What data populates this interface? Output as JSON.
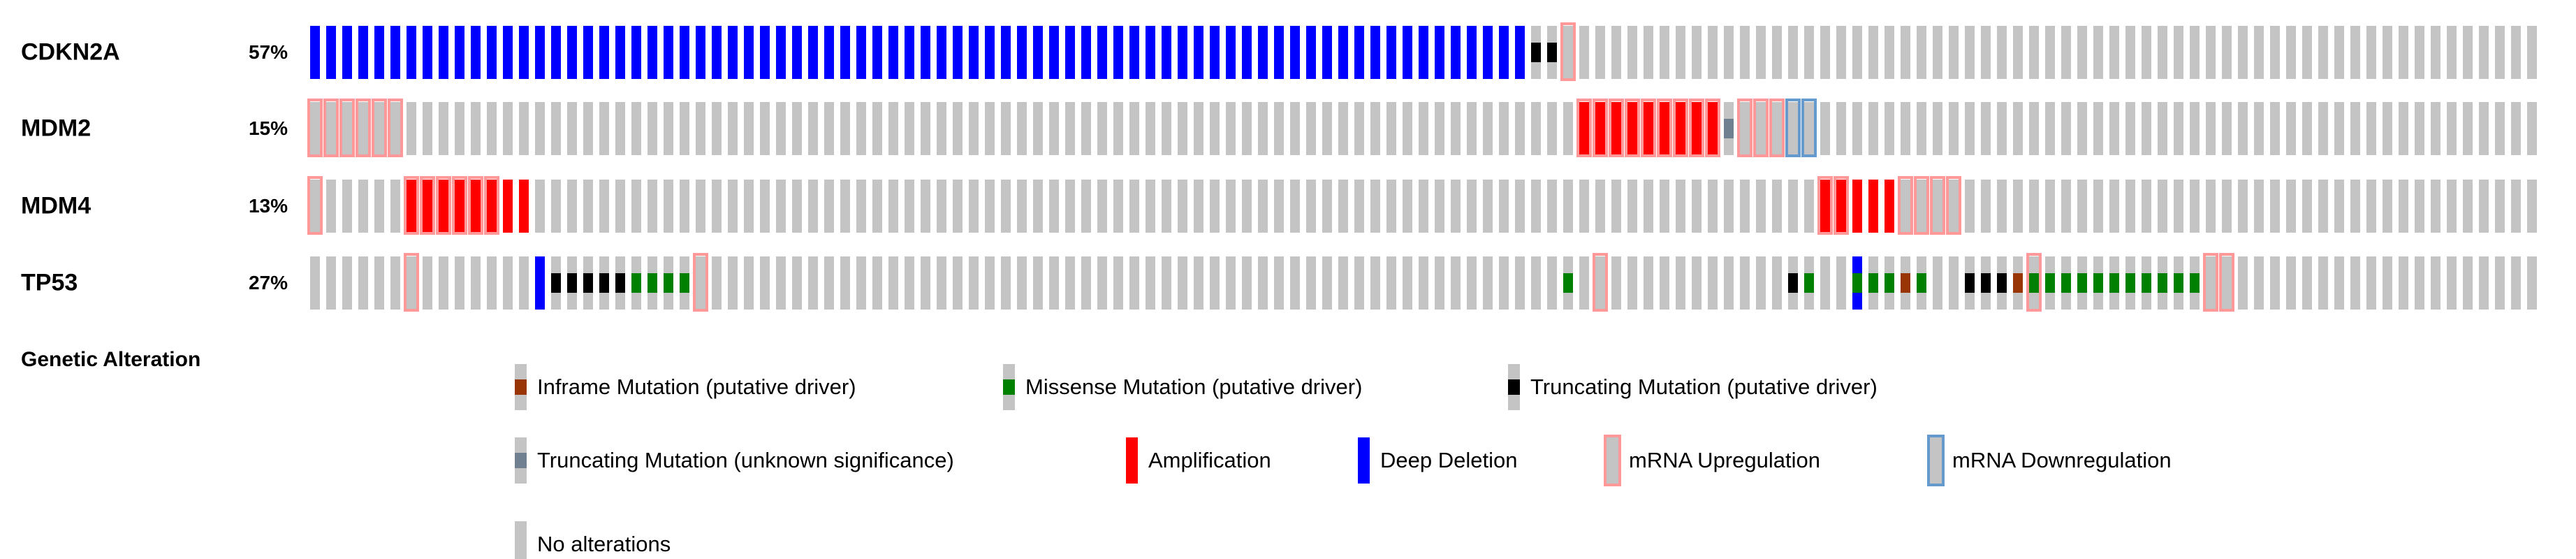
{
  "chart_data": {
    "type": "heatmap",
    "subtype": "oncoprint",
    "title": "Genetic Alteration",
    "columns": 139,
    "tracks": [
      {
        "gene": "CDKN2A",
        "altered_percent": "57%",
        "segments": [
          {
            "start": 0,
            "count": 76,
            "cna": "deep_deletion"
          },
          {
            "start": 76,
            "count": 2,
            "mut": "truncating_driver"
          },
          {
            "start": 78,
            "count": 1,
            "mrna": "up"
          }
        ]
      },
      {
        "gene": "MDM2",
        "altered_percent": "15%",
        "segments": [
          {
            "start": 0,
            "count": 6,
            "mrna": "up"
          },
          {
            "start": 79,
            "count": 9,
            "cna": "amplification",
            "mrna": "up"
          },
          {
            "start": 88,
            "count": 1,
            "mut": "truncating_unknown"
          },
          {
            "start": 89,
            "count": 3,
            "mrna": "up"
          },
          {
            "start": 92,
            "count": 2,
            "mrna": "down"
          }
        ]
      },
      {
        "gene": "MDM4",
        "altered_percent": "13%",
        "segments": [
          {
            "start": 0,
            "count": 1,
            "mrna": "up"
          },
          {
            "start": 6,
            "count": 6,
            "cna": "amplification",
            "mrna": "up"
          },
          {
            "start": 12,
            "count": 2,
            "cna": "amplification"
          },
          {
            "start": 94,
            "count": 2,
            "cna": "amplification",
            "mrna": "up"
          },
          {
            "start": 96,
            "count": 3,
            "cna": "amplification"
          },
          {
            "start": 99,
            "count": 4,
            "mrna": "up"
          }
        ]
      },
      {
        "gene": "TP53",
        "altered_percent": "27%",
        "segments": [
          {
            "start": 6,
            "count": 1,
            "mrna": "up"
          },
          {
            "start": 14,
            "count": 1,
            "cna": "deep_deletion"
          },
          {
            "start": 15,
            "count": 5,
            "mut": "truncating_driver"
          },
          {
            "start": 20,
            "count": 4,
            "mut": "missense_driver"
          },
          {
            "start": 24,
            "count": 1,
            "mrna": "up"
          },
          {
            "start": 78,
            "count": 1,
            "mut": "missense_driver"
          },
          {
            "start": 80,
            "count": 1,
            "mrna": "up"
          },
          {
            "start": 92,
            "count": 1,
            "mut": "truncating_driver"
          },
          {
            "start": 93,
            "count": 1,
            "mut": "missense_driver"
          },
          {
            "start": 96,
            "count": 1,
            "cna": "deep_deletion",
            "mut": "missense_driver"
          },
          {
            "start": 97,
            "count": 2,
            "mut": "missense_driver"
          },
          {
            "start": 99,
            "count": 1,
            "mut": "inframe_driver"
          },
          {
            "start": 100,
            "count": 1,
            "mut": "missense_driver"
          },
          {
            "start": 103,
            "count": 3,
            "mut": "truncating_driver"
          },
          {
            "start": 106,
            "count": 1,
            "mut": "inframe_driver"
          },
          {
            "start": 107,
            "count": 1,
            "mut": "missense_driver",
            "mrna": "up"
          },
          {
            "start": 108,
            "count": 10,
            "mut": "missense_driver"
          },
          {
            "start": 118,
            "count": 2,
            "mrna": "up"
          }
        ]
      }
    ],
    "colors": {
      "no_alteration": "#c4c4c4",
      "amplification": "#ff0000",
      "deep_deletion": "#0000ff",
      "missense_driver": "#008000",
      "truncating_driver": "#000000",
      "truncating_unknown": "#708090",
      "inframe_driver": "#993404",
      "mrna_up": "#ff9999",
      "mrna_down": "#6699cc"
    }
  },
  "legend": {
    "title": "Genetic Alteration",
    "rows": [
      [
        {
          "glyph": "mut",
          "color_key": "inframe_driver",
          "label": "Inframe Mutation (putative driver)"
        },
        {
          "glyph": "mut",
          "color_key": "missense_driver",
          "label": "Missense Mutation (putative driver)"
        },
        {
          "glyph": "mut",
          "color_key": "truncating_driver",
          "label": "Truncating Mutation (putative driver)"
        }
      ],
      [
        {
          "glyph": "mut",
          "color_key": "truncating_unknown",
          "label": "Truncating Mutation (unknown significance)"
        },
        {
          "glyph": "fill",
          "color_key": "amplification",
          "label": "Amplification"
        },
        {
          "glyph": "fill",
          "color_key": "deep_deletion",
          "label": "Deep Deletion"
        },
        {
          "glyph": "border",
          "color_key": "mrna_up",
          "label": "mRNA Upregulation"
        },
        {
          "glyph": "border",
          "color_key": "mrna_down",
          "label": "mRNA Downregulation"
        }
      ],
      [
        {
          "glyph": "none",
          "color_key": "no_alteration",
          "label": "No alterations"
        }
      ]
    ]
  }
}
